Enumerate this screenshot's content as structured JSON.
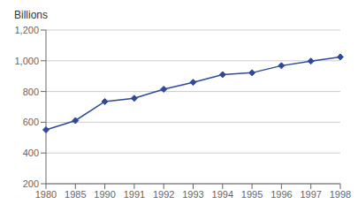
{
  "chart_data": {
    "type": "line",
    "ylabel": "Billions",
    "categories": [
      "1980",
      "1985",
      "1990",
      "1991",
      "1992",
      "1993",
      "1994",
      "1995",
      "1996",
      "1997",
      "1998"
    ],
    "values": [
      551,
      611,
      735,
      756,
      815,
      860,
      910,
      922,
      968,
      998,
      1025
    ],
    "color": "#2e4999",
    "marker": "diamond",
    "ylim": [
      200,
      1200
    ],
    "yticks": [
      200,
      400,
      600,
      800,
      {
        "value": 1000,
        "label": "1,000"
      },
      {
        "value": 1200,
        "label": "1,200"
      }
    ],
    "grid": true
  }
}
